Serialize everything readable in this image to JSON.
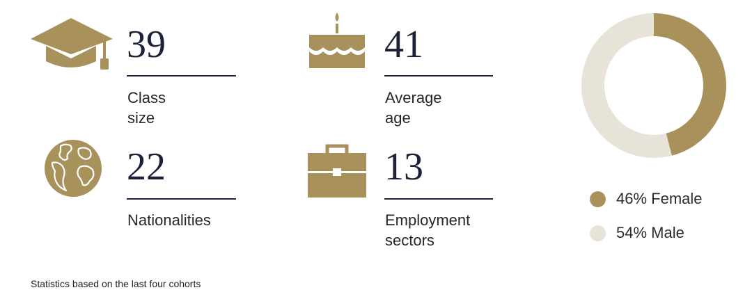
{
  "stats": [
    {
      "value": "39",
      "label": "Class size",
      "icon": "graduation-cap-icon"
    },
    {
      "value": "41",
      "label": "Average age",
      "icon": "birthday-cake-icon"
    },
    {
      "value": "22",
      "label": "Nationalities",
      "icon": "globe-icon"
    },
    {
      "value": "13",
      "label": "Employment sectors",
      "icon": "briefcase-icon"
    }
  ],
  "chart_data": {
    "type": "pie",
    "style": "donut",
    "title": "",
    "slices": [
      {
        "label": "46% Female",
        "value": 46,
        "color": "#a8915b"
      },
      {
        "label": "54% Male",
        "value": 54,
        "color": "#e7e3d9"
      }
    ],
    "legend_placement": "bottom"
  },
  "colors": {
    "gold": "#a8915b",
    "light": "#e7e3d9",
    "navy": "#1f2340"
  },
  "footnote": "Statistics based on the last four cohorts"
}
